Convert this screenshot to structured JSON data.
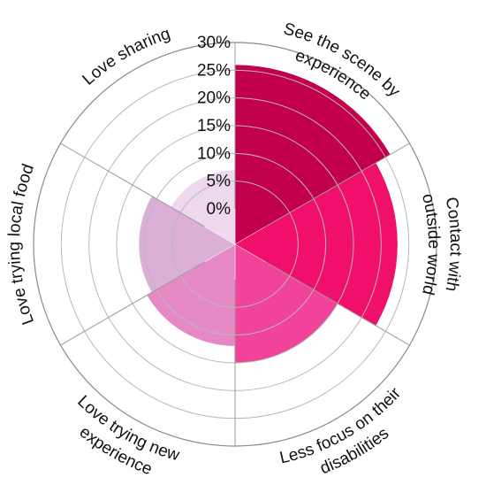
{
  "chart_data": {
    "type": "polar-area",
    "categories": [
      {
        "label": [
          "See the scene by",
          "experience"
        ],
        "value": 26,
        "color": "#c2004b"
      },
      {
        "label": [
          "Contact with",
          "outside world"
        ],
        "value": 23,
        "color": "#f0106c"
      },
      {
        "label": [
          "Less focus on their",
          "disabilities"
        ],
        "value": 15,
        "color": "#f2439b"
      },
      {
        "label": [
          "Love trying new",
          "experience"
        ],
        "value": 12,
        "color": "#e589c4"
      },
      {
        "label": [
          "Love trying local food"
        ],
        "value": 11,
        "color": "#dcb0d6"
      },
      {
        "label": [
          "Love sharing"
        ],
        "value": 7,
        "color": "#eed8ee"
      }
    ],
    "ticks": [
      "0%",
      "5%",
      "10%",
      "15%",
      "20%",
      "25%",
      "30%"
    ],
    "rmax": 30,
    "grid": true
  }
}
